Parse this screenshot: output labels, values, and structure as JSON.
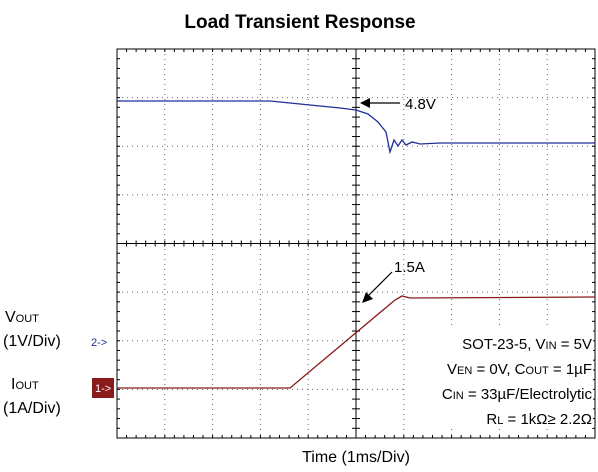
{
  "title": "Load Transient Response",
  "x_label": "Time (1ms/Div)",
  "annotations": {
    "vout_level": "4.8V",
    "iout_level": "1.5A"
  },
  "channels": [
    {
      "name": [
        "V",
        "OUT"
      ],
      "scale": "(1V/Div)",
      "marker": "2->",
      "color": "#1f2f9a"
    },
    {
      "name": [
        "I",
        "OUT"
      ],
      "scale": "(1A/Div)",
      "marker": "1->",
      "color": "#8b1a1a"
    }
  ],
  "notes": [
    [
      "SOT-23-5, V",
      "IN",
      " = 5V"
    ],
    [
      "V",
      "EN",
      " = 0V, C",
      "OUT",
      " = 1µF"
    ],
    [
      "C",
      "IN",
      " = 33µF/Electrolytic"
    ],
    [
      "R",
      "L",
      " = 1kΩ≥ 2.2Ω"
    ]
  ]
}
